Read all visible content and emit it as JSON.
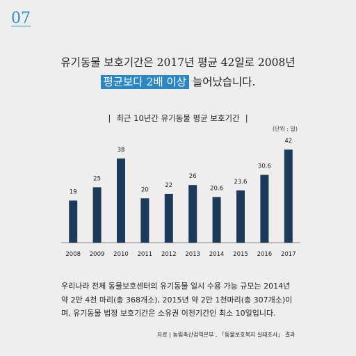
{
  "page_number": "07",
  "headline": {
    "line1": "유기동물 보호기간은 2017년 평균 42일로 2008년",
    "line2_highlight": "평균보다 2배 이상",
    "line2_rest": " 늘어났습니다."
  },
  "chart_data": {
    "type": "bar",
    "title": "최근 10년간 유기동물 평균 보호기간",
    "title_left_bar": "|",
    "title_right_bar": "|",
    "unit_label": "(단위 : 일)",
    "categories": [
      "2008",
      "2009",
      "2010",
      "2011",
      "2012",
      "2013",
      "2014",
      "2015",
      "2016",
      "2017"
    ],
    "values": [
      19,
      25,
      38,
      20,
      22,
      26,
      20.6,
      23.6,
      30.6,
      42
    ],
    "data_labels": [
      "19",
      "25",
      "38",
      "20",
      "22",
      "26",
      "20.6",
      "23.6",
      "30.6",
      "42"
    ],
    "ylim": [
      0,
      45
    ],
    "grid": false,
    "bar_color": "#1c3a5a",
    "axis_color": "#8a8a8a"
  },
  "body_text": "우리나라 전체 동물보호센터의 유기동물 일시 수용 가능 규모는 2014년 약 2만 4천 마리(총 368개소), 2015년 약 2만 1천마리(총 307개소)이며, 유기동물 법정 보호기간은 소유권 이전기간인 최소 10일입니다.",
  "source": "자료 | 농림축산검역본부 , 「동물보호복지 실태조사」 결과"
}
